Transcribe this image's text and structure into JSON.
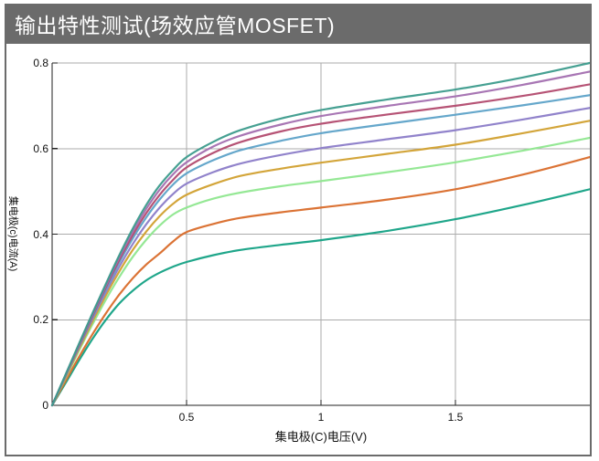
{
  "window": {
    "title": "输出特性测试(场效应管MOSFET)",
    "title_bar_color": "#6b6b6b",
    "border_color": "#6b6b6b"
  },
  "chart_data": {
    "type": "line",
    "title": "输出特性测试(场效应管MOSFET)",
    "xlabel": "集电极(C)电压(V)",
    "ylabel": "集电极(c)电流(A)",
    "xlim": [
      0,
      2
    ],
    "ylim": [
      0,
      0.8
    ],
    "grid": true,
    "legend": "none",
    "grid_color": "#ababab",
    "axis_color": "#222222",
    "xticks": {
      "values": [
        0.5,
        1,
        1.5
      ],
      "labels": [
        "0.5",
        "1",
        "1.5"
      ]
    },
    "yticks": {
      "values": [
        0,
        0.2,
        0.4,
        0.6,
        0.8
      ],
      "labels": [
        "0",
        "0.2",
        "0.4",
        "0.6",
        "0.8"
      ]
    },
    "x": [
      0,
      0.05,
      0.1,
      0.15,
      0.2,
      0.25,
      0.3,
      0.35,
      0.4,
      0.45,
      0.5,
      0.6,
      0.7,
      0.85,
      1.0,
      1.25,
      1.5,
      1.75,
      2.0
    ],
    "series": [
      {
        "name": "series-1",
        "color": "#13a184",
        "values": [
          0,
          0.052,
          0.105,
          0.155,
          0.2,
          0.238,
          0.268,
          0.292,
          0.31,
          0.324,
          0.335,
          0.351,
          0.363,
          0.375,
          0.386,
          0.408,
          0.435,
          0.468,
          0.505
        ]
      },
      {
        "name": "series-2",
        "color": "#d96c2a",
        "values": [
          0,
          0.057,
          0.113,
          0.166,
          0.215,
          0.259,
          0.297,
          0.329,
          0.355,
          0.383,
          0.405,
          0.424,
          0.438,
          0.451,
          0.462,
          0.481,
          0.505,
          0.539,
          0.58
        ]
      },
      {
        "name": "series-3",
        "color": "#8fe78f",
        "values": [
          0,
          0.064,
          0.128,
          0.189,
          0.247,
          0.3,
          0.347,
          0.387,
          0.42,
          0.446,
          0.462,
          0.483,
          0.497,
          0.512,
          0.524,
          0.545,
          0.568,
          0.595,
          0.625
        ]
      },
      {
        "name": "series-4",
        "color": "#d1a02f",
        "values": [
          0,
          0.066,
          0.132,
          0.196,
          0.257,
          0.313,
          0.363,
          0.406,
          0.442,
          0.471,
          0.492,
          0.517,
          0.536,
          0.553,
          0.567,
          0.588,
          0.609,
          0.636,
          0.665
        ]
      },
      {
        "name": "series-5",
        "color": "#8b7cc8",
        "values": [
          0,
          0.068,
          0.136,
          0.202,
          0.265,
          0.324,
          0.377,
          0.423,
          0.462,
          0.494,
          0.518,
          0.545,
          0.565,
          0.585,
          0.601,
          0.622,
          0.643,
          0.668,
          0.695
        ]
      },
      {
        "name": "series-6",
        "color": "#5da2c8",
        "values": [
          0,
          0.069,
          0.138,
          0.206,
          0.272,
          0.334,
          0.39,
          0.439,
          0.481,
          0.516,
          0.542,
          0.573,
          0.596,
          0.618,
          0.636,
          0.658,
          0.679,
          0.701,
          0.725
        ]
      },
      {
        "name": "series-7",
        "color": "#b24a6e",
        "values": [
          0,
          0.07,
          0.14,
          0.209,
          0.276,
          0.34,
          0.398,
          0.449,
          0.492,
          0.527,
          0.556,
          0.59,
          0.615,
          0.64,
          0.658,
          0.68,
          0.7,
          0.723,
          0.75
        ]
      },
      {
        "name": "series-8",
        "color": "#a36fb0",
        "values": [
          0,
          0.071,
          0.142,
          0.212,
          0.28,
          0.346,
          0.406,
          0.459,
          0.504,
          0.54,
          0.568,
          0.605,
          0.63,
          0.656,
          0.676,
          0.7,
          0.722,
          0.749,
          0.78
        ]
      },
      {
        "name": "series-9",
        "color": "#3c9b8c",
        "values": [
          0,
          0.072,
          0.144,
          0.215,
          0.284,
          0.351,
          0.413,
          0.468,
          0.514,
          0.55,
          0.58,
          0.616,
          0.643,
          0.67,
          0.69,
          0.715,
          0.738,
          0.766,
          0.8
        ]
      }
    ]
  }
}
